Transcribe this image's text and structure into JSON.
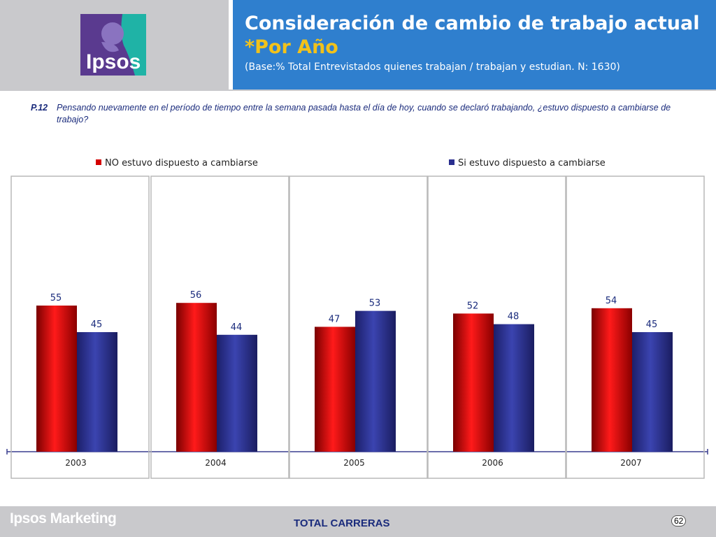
{
  "header": {
    "title": "Consideración de cambio de trabajo actual",
    "subtitle": "*Por Año",
    "base": "(Base:% Total Entrevistados quienes trabajan / trabajan y estudian. N: 1630)"
  },
  "logo": {
    "text": "Ipsos"
  },
  "question": {
    "number": "P.12",
    "text": "Pensando nuevamente en el período de tiempo entre la semana pasada hasta el día de hoy, cuando se declaró trabajando, ¿estuvo dispuesto a cambiarse de trabajo?"
  },
  "footer": {
    "brand": "Ipsos Marketing",
    "label": "TOTAL CARRERAS",
    "page": "62"
  },
  "colors": {
    "header_blue": "#2f7fce",
    "title_yellow": "#f2c21b",
    "no_series": "#d40000",
    "si_series": "#2a2f8f",
    "label_text": "#1a2b7c"
  },
  "chart_data": {
    "type": "bar",
    "categories": [
      "2003",
      "2004",
      "2005",
      "2006",
      "2007"
    ],
    "series": [
      {
        "name": "NO estuvo dispuesto a cambiarse",
        "values": [
          55,
          56,
          47,
          52,
          54
        ]
      },
      {
        "name": "Si estuvo dispuesto a cambiarse",
        "values": [
          45,
          44,
          53,
          48,
          45
        ]
      }
    ],
    "ylim": [
      0,
      100
    ],
    "legend": "top",
    "data_labels": true,
    "grid": false
  }
}
